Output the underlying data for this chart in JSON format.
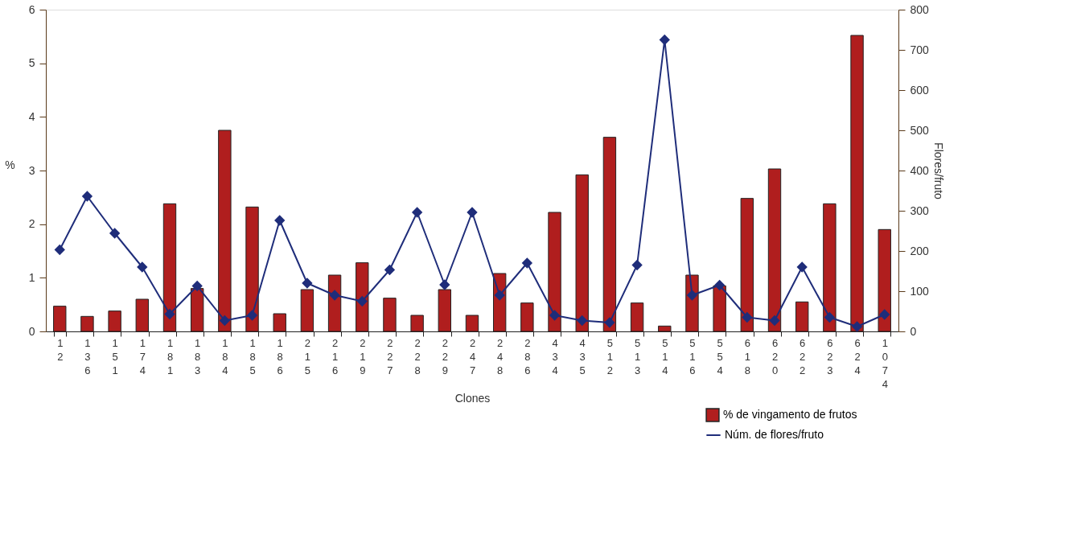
{
  "chart_data": {
    "type": "bar",
    "xlabel": "Clones",
    "ylabel": "%",
    "y2label": "Flores/fruto",
    "categories": [
      "12",
      "136",
      "151",
      "174",
      "181",
      "183",
      "184",
      "185",
      "186",
      "215",
      "216",
      "219",
      "227",
      "228",
      "229",
      "247",
      "248",
      "286",
      "434",
      "435",
      "512",
      "513",
      "514",
      "516",
      "554",
      "618",
      "620",
      "622",
      "623",
      "624",
      "1074"
    ],
    "series": [
      {
        "name": "% de vingamento de frutos",
        "color": "#b01e1e",
        "values": [
          0.47,
          0.28,
          0.38,
          0.6,
          2.38,
          0.8,
          3.75,
          2.32,
          0.33,
          0.78,
          1.05,
          1.28,
          0.62,
          0.3,
          0.78,
          0.3,
          1.08,
          0.53,
          2.22,
          2.92,
          3.62,
          0.53,
          0.1,
          1.05,
          0.85,
          2.48,
          3.03,
          0.55,
          2.38,
          5.52,
          1.9
        ]
      },
      {
        "name": "Núm. de flores/fruto",
        "type": "line",
        "axis": "y2",
        "color": "#1f2d7a",
        "marker": "diamond",
        "values": [
          203,
          336,
          244,
          160,
          43,
          113,
          27,
          40,
          276,
          120,
          90,
          75,
          153,
          296,
          116,
          296,
          90,
          170,
          40,
          27,
          22,
          165,
          725,
          90,
          115,
          35,
          27,
          160,
          35,
          12,
          42
        ]
      }
    ],
    "ylim": [
      0,
      6
    ],
    "yticks": [
      0,
      1,
      2,
      3,
      4,
      5,
      6
    ],
    "y2lim": [
      0,
      800
    ],
    "y2ticks": [
      0,
      100,
      200,
      300,
      400,
      500,
      600,
      700,
      800
    ],
    "grid": false,
    "legend": "bottom right"
  }
}
